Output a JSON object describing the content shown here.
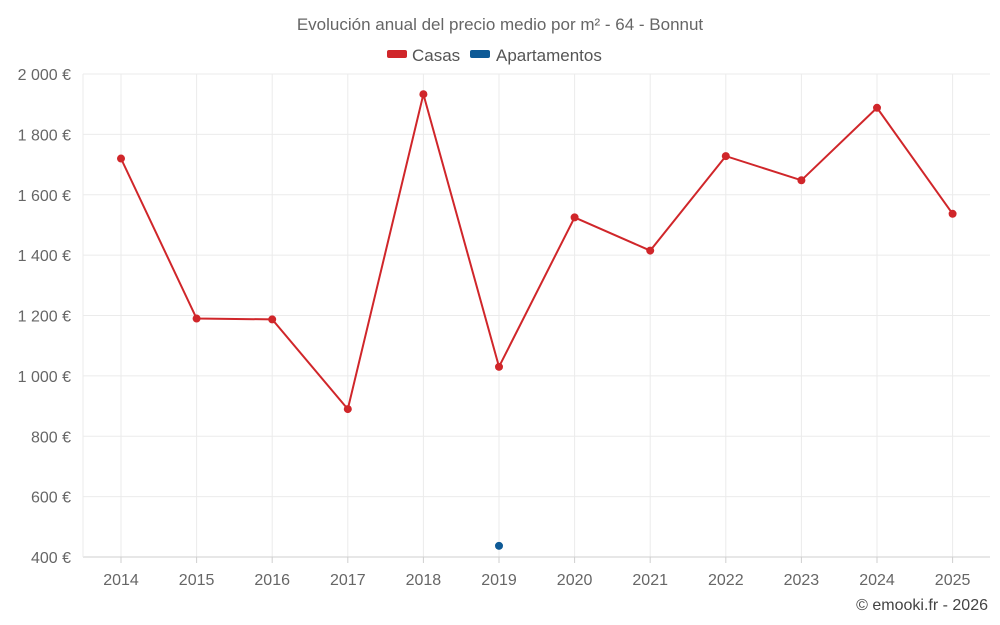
{
  "chart_data": {
    "type": "line",
    "title": "Evolución anual del precio medio por m² - 64 - Bonnut",
    "categories": [
      "2014",
      "2015",
      "2016",
      "2017",
      "2018",
      "2019",
      "2020",
      "2021",
      "2022",
      "2023",
      "2024",
      "2025"
    ],
    "yticks": [
      "400 €",
      "600 €",
      "800 €",
      "1 000 €",
      "1 200 €",
      "1 400 €",
      "1 600 €",
      "1 800 €",
      "2 000 €"
    ],
    "ylim": [
      400,
      2000
    ],
    "grid": true,
    "legend_position": "top-center",
    "series": [
      {
        "name": "Casas",
        "color": "#d0262a",
        "values": [
          1720,
          1190,
          1187,
          890,
          1933,
          1030,
          1525,
          1415,
          1728,
          1648,
          1888,
          1537
        ]
      },
      {
        "name": "Apartamentos",
        "color": "#0e5a96",
        "values": [
          null,
          null,
          null,
          null,
          null,
          437,
          null,
          null,
          null,
          null,
          null,
          null
        ]
      }
    ],
    "credit": "© emooki.fr - 2026"
  }
}
